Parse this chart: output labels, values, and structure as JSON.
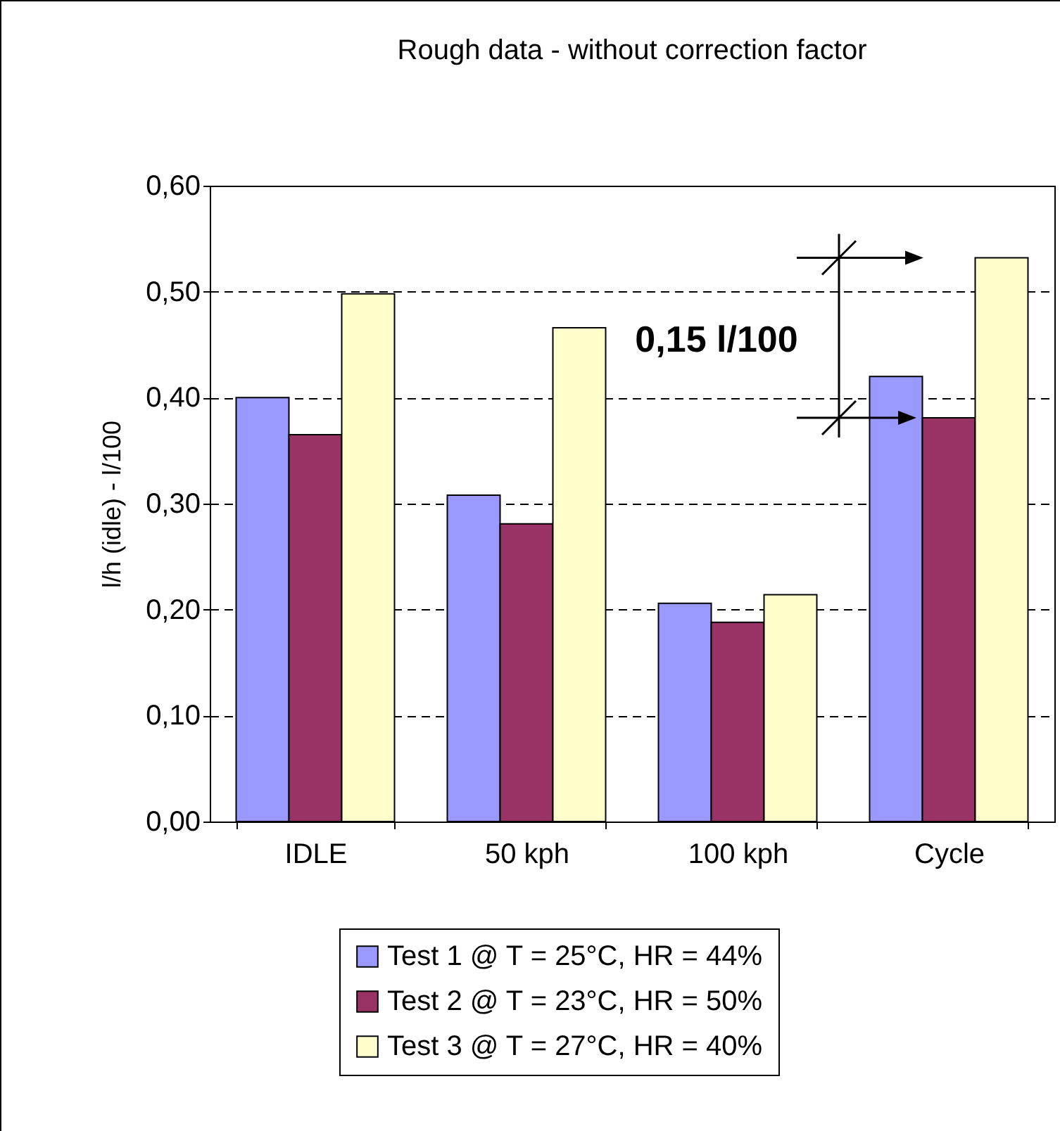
{
  "chart_data": {
    "type": "bar",
    "title": "Rough data - without correction factor",
    "ylabel": "l/h (idle) - l/100",
    "categories": [
      "IDLE",
      "50 kph",
      "100 kph",
      "Cycle"
    ],
    "series": [
      {
        "name": "Test 1 @ T = 25°C, HR = 44%",
        "color": "#9999ff",
        "values": [
          0.4,
          0.308,
          0.206,
          0.42
        ]
      },
      {
        "name": "Test 2 @ T = 23°C, HR = 50%",
        "color": "#993366",
        "values": [
          0.365,
          0.281,
          0.188,
          0.381
        ]
      },
      {
        "name": "Test 3 @ T = 27°C, HR = 40%",
        "color": "#ffffcc",
        "values": [
          0.498,
          0.466,
          0.214,
          0.532
        ]
      }
    ],
    "ylim": [
      0,
      0.6
    ],
    "yticks": [
      {
        "value": 0,
        "label": "0,00"
      },
      {
        "value": 0.1,
        "label": "0,10"
      },
      {
        "value": 0.2,
        "label": "0,20"
      },
      {
        "value": 0.3,
        "label": "0,30"
      },
      {
        "value": 0.4,
        "label": "0,40"
      },
      {
        "value": 0.5,
        "label": "0,50"
      },
      {
        "value": 0.6,
        "label": "0,60"
      }
    ],
    "grid": "y",
    "legend": "bottom",
    "annotations": [
      "0,15 l/100"
    ]
  }
}
